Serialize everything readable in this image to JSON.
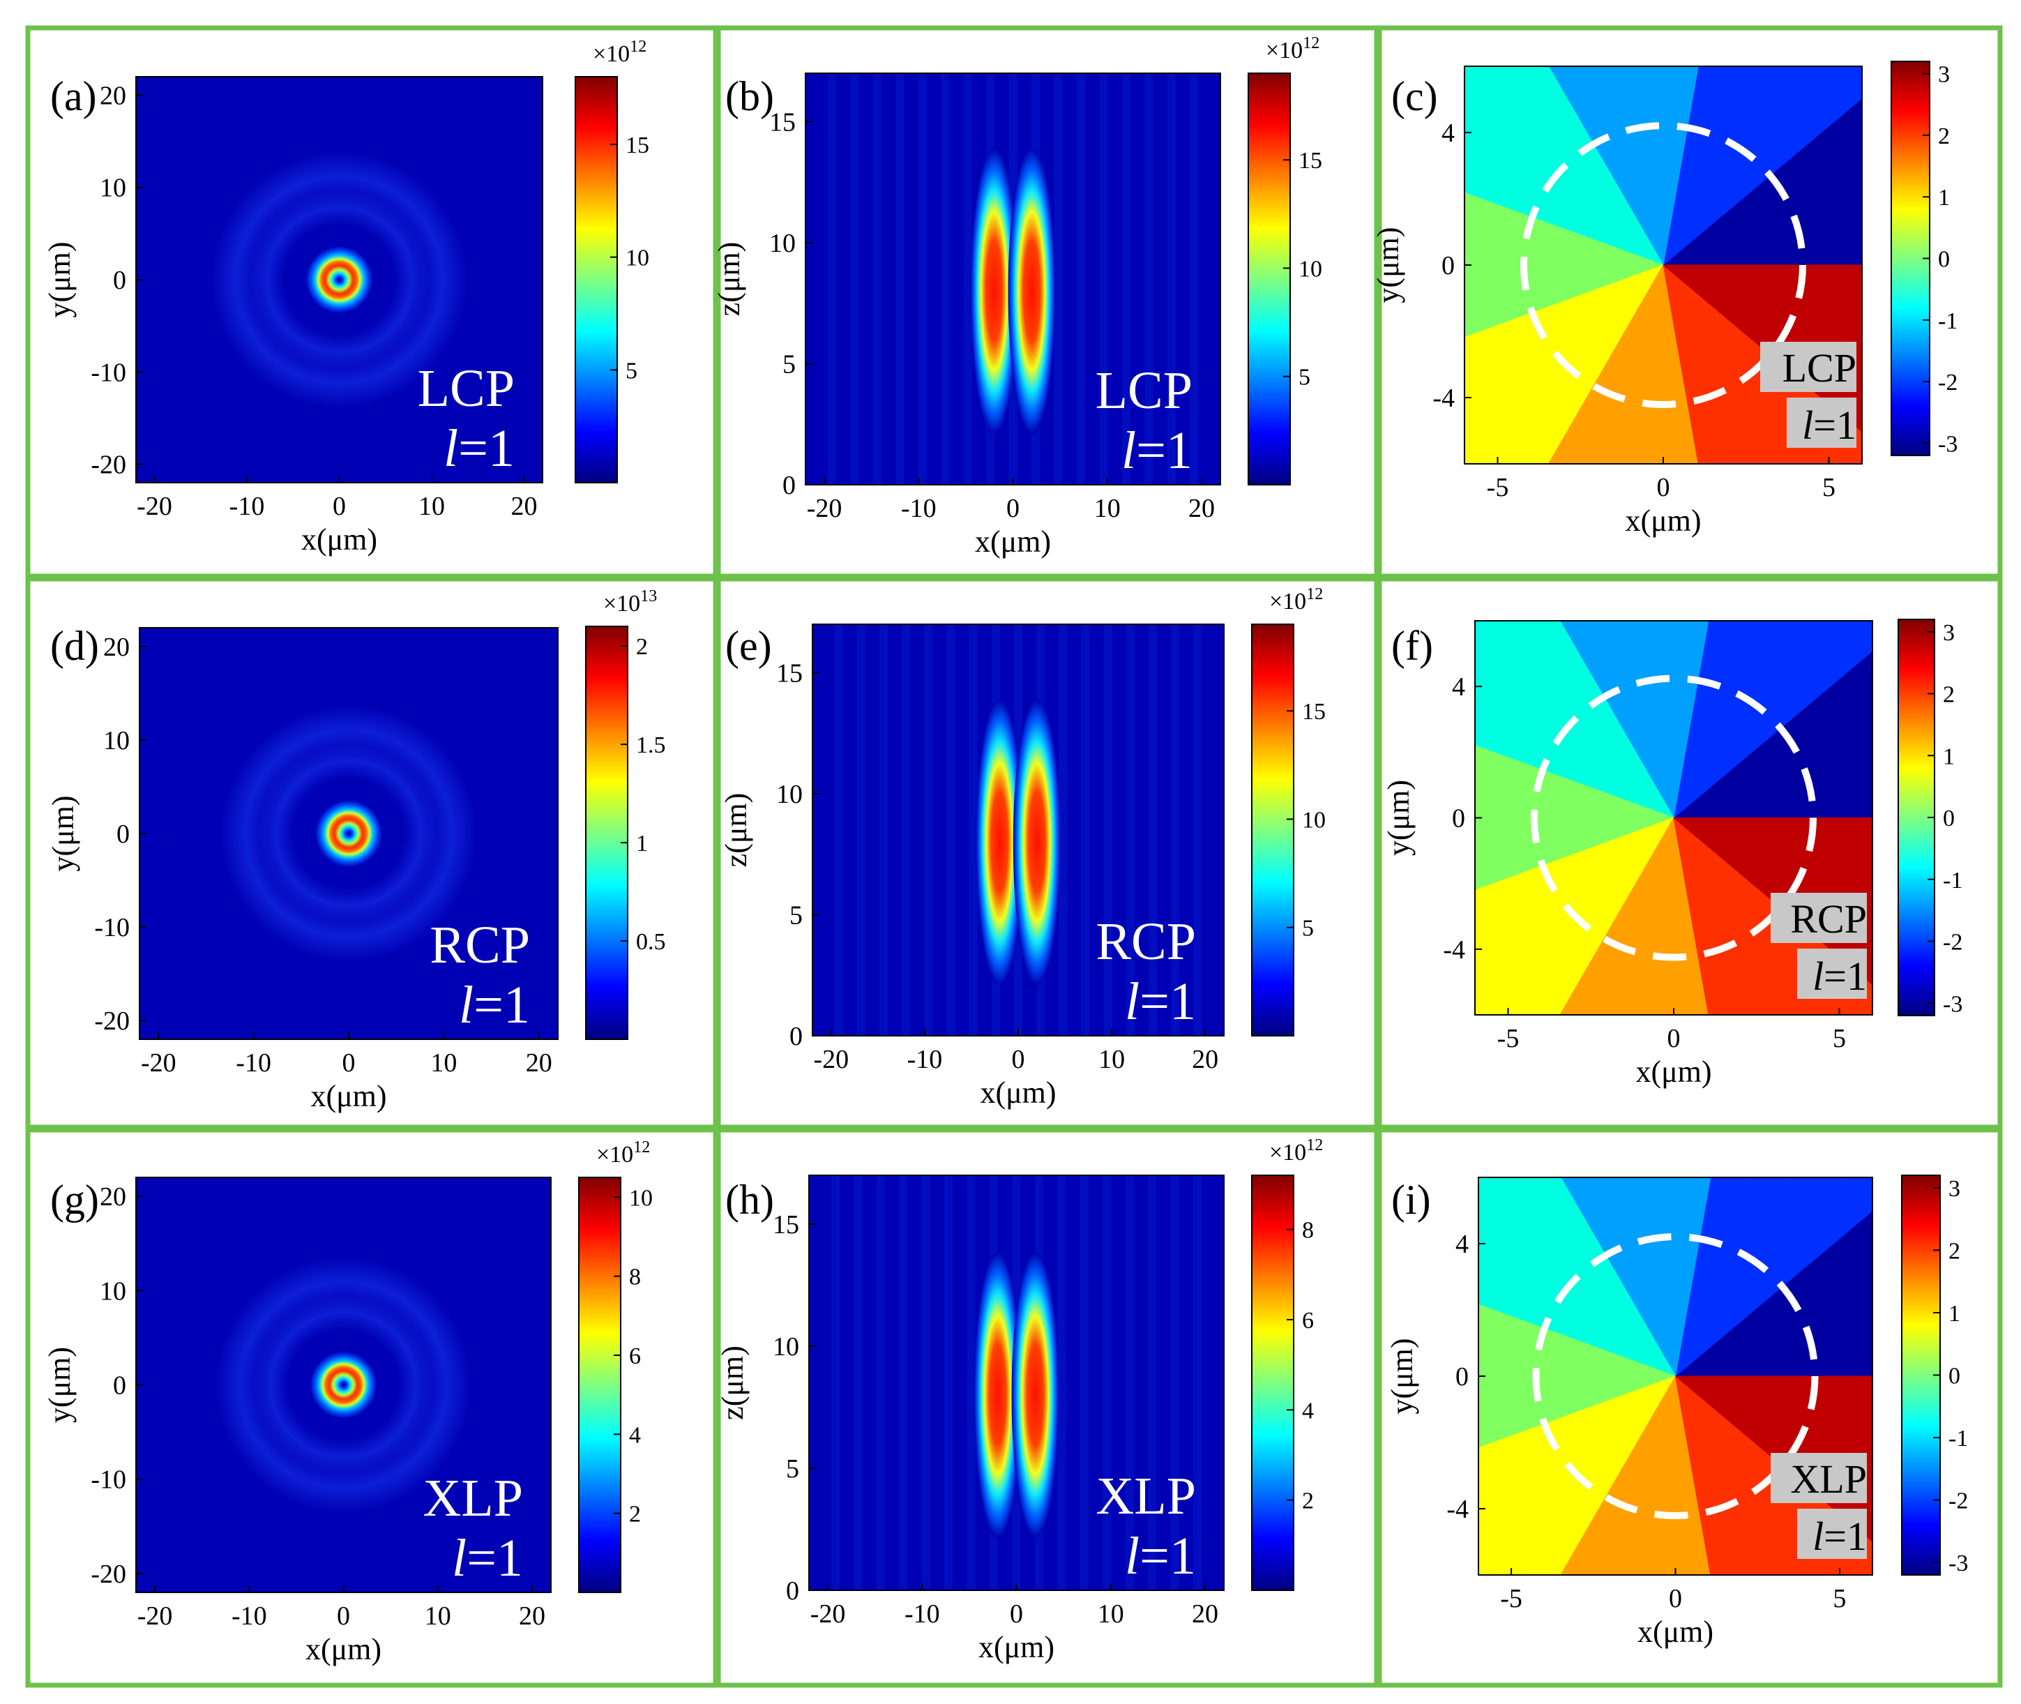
{
  "colormap": "jet",
  "colors": {
    "border": "#6cc24a",
    "background": "#ffffff",
    "dashed_circle": "#ffffff",
    "label_box": "#c8c8c8"
  },
  "chart_data": [
    {
      "id": "a",
      "type": "heatmap",
      "panel_label": "(a)",
      "plane": "xy",
      "pattern": "ring",
      "xlabel": "x(μm)",
      "ylabel": "y(μm)",
      "xlim": [
        -22,
        22
      ],
      "ylim": [
        -22,
        22
      ],
      "xticks": [
        -20,
        -10,
        0,
        10,
        20
      ],
      "yticks": [
        -20,
        -10,
        0,
        10,
        20
      ],
      "colorbar": {
        "min": 0,
        "max": 18,
        "ticks": [
          5,
          10,
          15
        ],
        "tick_labels": [
          "5",
          "10",
          "15"
        ],
        "exponent_label": "×10",
        "exponent": "12"
      },
      "annotation": {
        "pol": "LCP",
        "l_var": "l",
        "l_rest": "=1"
      }
    },
    {
      "id": "b",
      "type": "heatmap",
      "panel_label": "(b)",
      "plane": "xz",
      "pattern": "lobes",
      "xlabel": "x(μm)",
      "ylabel": "z(μm)",
      "xlim": [
        -22,
        22
      ],
      "ylim": [
        0,
        17
      ],
      "xticks": [
        -20,
        -10,
        0,
        10,
        20
      ],
      "yticks": [
        0,
        5,
        10,
        15
      ],
      "colorbar": {
        "min": 0,
        "max": 19,
        "ticks": [
          5,
          10,
          15
        ],
        "tick_labels": [
          "5",
          "10",
          "15"
        ],
        "exponent_label": "×10",
        "exponent": "12"
      },
      "annotation": {
        "pol": "LCP",
        "l_var": "l",
        "l_rest": "=1"
      }
    },
    {
      "id": "c",
      "type": "heatmap",
      "panel_label": "(c)",
      "plane": "phase",
      "pattern": "phase",
      "xlabel": "x(μm)",
      "ylabel": "y(μm)",
      "xlim": [
        -6,
        6
      ],
      "ylim": [
        -6,
        6
      ],
      "xticks": [
        -5,
        0,
        5
      ],
      "yticks": [
        -4,
        0,
        4
      ],
      "colorbar": {
        "min": -3.2,
        "max": 3.2,
        "ticks": [
          -3,
          -2,
          -1,
          0,
          1,
          2,
          3
        ],
        "tick_labels": [
          "-3",
          "-2",
          "-1",
          "0",
          "1",
          "2",
          "3"
        ]
      },
      "annotation": {
        "pol": "LCP",
        "l_var": "l",
        "l_rest": "=1"
      }
    },
    {
      "id": "d",
      "type": "heatmap",
      "panel_label": "(d)",
      "plane": "xy",
      "pattern": "ring",
      "xlabel": "x(μm)",
      "ylabel": "y(μm)",
      "xlim": [
        -22,
        22
      ],
      "ylim": [
        -22,
        22
      ],
      "xticks": [
        -20,
        -10,
        0,
        10,
        20
      ],
      "yticks": [
        -20,
        -10,
        0,
        10,
        20
      ],
      "colorbar": {
        "min": 0,
        "max": 2.1,
        "ticks": [
          0.5,
          1,
          1.5,
          2
        ],
        "tick_labels": [
          "0.5",
          "1",
          "1.5",
          "2"
        ],
        "exponent_label": "×10",
        "exponent": "13"
      },
      "annotation": {
        "pol": "RCP",
        "l_var": "l",
        "l_rest": "=1"
      }
    },
    {
      "id": "e",
      "type": "heatmap",
      "panel_label": "(e)",
      "plane": "xz",
      "pattern": "lobes",
      "xlabel": "x(μm)",
      "ylabel": "z(μm)",
      "xlim": [
        -22,
        22
      ],
      "ylim": [
        0,
        17
      ],
      "xticks": [
        -20,
        -10,
        0,
        10,
        20
      ],
      "yticks": [
        0,
        5,
        10,
        15
      ],
      "colorbar": {
        "min": 0,
        "max": 19,
        "ticks": [
          5,
          10,
          15
        ],
        "tick_labels": [
          "5",
          "10",
          "15"
        ],
        "exponent_label": "×10",
        "exponent": "12"
      },
      "annotation": {
        "pol": "RCP",
        "l_var": "l",
        "l_rest": "=1"
      }
    },
    {
      "id": "f",
      "type": "heatmap",
      "panel_label": "(f)",
      "plane": "phase",
      "pattern": "phase",
      "xlabel": "x(μm)",
      "ylabel": "y(μm)",
      "xlim": [
        -6,
        6
      ],
      "ylim": [
        -6,
        6
      ],
      "xticks": [
        -5,
        0,
        5
      ],
      "yticks": [
        -4,
        0,
        4
      ],
      "colorbar": {
        "min": -3.2,
        "max": 3.2,
        "ticks": [
          -3,
          -2,
          -1,
          0,
          1,
          2,
          3
        ],
        "tick_labels": [
          "-3",
          "-2",
          "-1",
          "0",
          "1",
          "2",
          "3"
        ]
      },
      "annotation": {
        "pol": "RCP",
        "l_var": "l",
        "l_rest": "=1"
      }
    },
    {
      "id": "g",
      "type": "heatmap",
      "panel_label": "(g)",
      "plane": "xy",
      "pattern": "ring",
      "xlabel": "x(μm)",
      "ylabel": "y(μm)",
      "xlim": [
        -22,
        22
      ],
      "ylim": [
        -22,
        22
      ],
      "xticks": [
        -20,
        -10,
        0,
        10,
        20
      ],
      "yticks": [
        -20,
        -10,
        0,
        10,
        20
      ],
      "colorbar": {
        "min": 0,
        "max": 10.5,
        "ticks": [
          2,
          4,
          6,
          8,
          10
        ],
        "tick_labels": [
          "2",
          "4",
          "6",
          "8",
          "10"
        ],
        "exponent_label": "×10",
        "exponent": "12"
      },
      "annotation": {
        "pol": "XLP",
        "l_var": "l",
        "l_rest": "=1"
      }
    },
    {
      "id": "h",
      "type": "heatmap",
      "panel_label": "(h)",
      "plane": "xz",
      "pattern": "lobes",
      "xlabel": "x(μm)",
      "ylabel": "z(μm)",
      "xlim": [
        -22,
        22
      ],
      "ylim": [
        0,
        17
      ],
      "xticks": [
        -20,
        -10,
        0,
        10,
        20
      ],
      "yticks": [
        0,
        5,
        10,
        15
      ],
      "colorbar": {
        "min": 0,
        "max": 9.2,
        "ticks": [
          2,
          4,
          6,
          8
        ],
        "tick_labels": [
          "2",
          "4",
          "6",
          "8"
        ],
        "exponent_label": "×10",
        "exponent": "12"
      },
      "annotation": {
        "pol": "XLP",
        "l_var": "l",
        "l_rest": "=1"
      }
    },
    {
      "id": "i",
      "type": "heatmap",
      "panel_label": "(i)",
      "plane": "phase",
      "pattern": "phase",
      "xlabel": "x(μm)",
      "ylabel": "y(μm)",
      "xlim": [
        -6,
        6
      ],
      "ylim": [
        -6,
        6
      ],
      "xticks": [
        -5,
        0,
        5
      ],
      "yticks": [
        -4,
        0,
        4
      ],
      "colorbar": {
        "min": -3.2,
        "max": 3.2,
        "ticks": [
          -3,
          -2,
          -1,
          0,
          1,
          2,
          3
        ],
        "tick_labels": [
          "-3",
          "-2",
          "-1",
          "0",
          "1",
          "2",
          "3"
        ]
      },
      "annotation": {
        "pol": "XLP",
        "l_var": "l",
        "l_rest": "=1"
      }
    }
  ]
}
